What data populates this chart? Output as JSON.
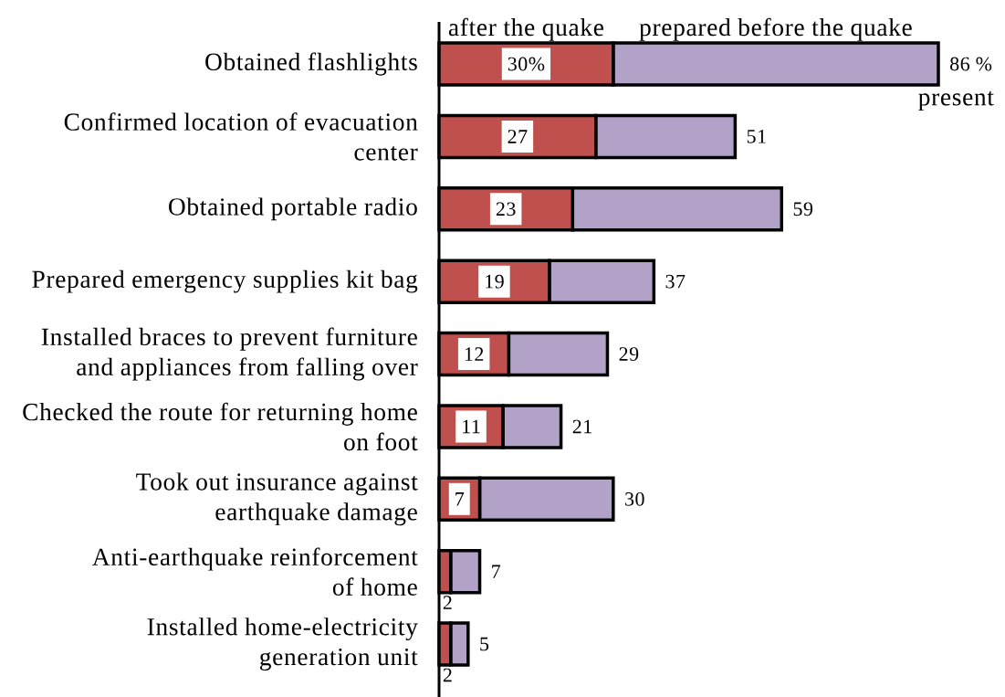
{
  "chart_data": {
    "type": "bar",
    "orientation": "horizontal",
    "stacked": true,
    "categories": [
      "Obtained flashlights",
      "Confirmed location of evacuation\ncenter",
      "Obtained portable radio",
      "Prepared emergency supplies kit bag",
      "Installed braces to prevent furniture\nand appliances from falling over",
      "Checked the route for returning home\non foot",
      "Took out insurance against\nearthquake damage",
      "Anti-earthquake reinforcement\nof home",
      "Installed home-electricity\ngeneration unit"
    ],
    "series": [
      {
        "name": "after the quake",
        "color": "#c0504d",
        "values": [
          30,
          27,
          23,
          19,
          12,
          11,
          7,
          2,
          2
        ],
        "value_labels": [
          "30%",
          "27",
          "23",
          "19",
          "12",
          "11",
          "7",
          "2",
          "2"
        ]
      },
      {
        "name": "prepared before the quake",
        "color": "#b3a2c7",
        "values": [
          56,
          24,
          36,
          18,
          17,
          10,
          23,
          5,
          3
        ]
      }
    ],
    "totals": [
      "86 %",
      "51",
      "59",
      "37",
      "29",
      "21",
      "30",
      "7",
      "5"
    ],
    "annotations": [
      "present"
    ],
    "xlim": [
      0,
      86
    ]
  }
}
